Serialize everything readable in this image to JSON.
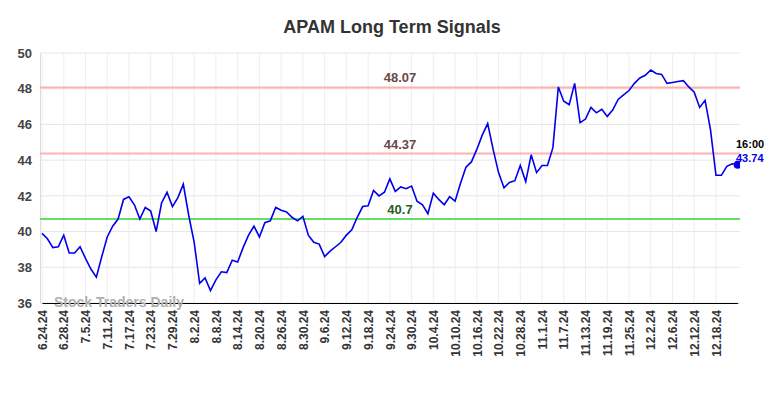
{
  "chart_data": {
    "type": "line",
    "title": "APAM Long Term Signals",
    "categories": [
      "6.24.24",
      null,
      null,
      null,
      "6.28.24",
      null,
      null,
      null,
      "7.5.24",
      null,
      null,
      null,
      "7.11.24",
      null,
      null,
      null,
      "7.17.24",
      null,
      null,
      null,
      "7.23.24",
      null,
      null,
      null,
      "7.29.24",
      null,
      null,
      null,
      "8.2.24",
      null,
      null,
      null,
      "8.8.24",
      null,
      null,
      null,
      "8.14.24",
      null,
      null,
      null,
      "8.20.24",
      null,
      null,
      null,
      "8.26.24",
      null,
      null,
      null,
      "8.30.24",
      null,
      null,
      null,
      "9.6.24",
      null,
      null,
      null,
      "9.12.24",
      null,
      null,
      null,
      "9.18.24",
      null,
      null,
      null,
      "9.24.24",
      null,
      null,
      null,
      "9.30.24",
      null,
      null,
      null,
      "10.4.24",
      null,
      null,
      null,
      "10.10.24",
      null,
      null,
      null,
      "10.16.24",
      null,
      null,
      null,
      "10.22.24",
      null,
      null,
      null,
      "10.28.24",
      null,
      null,
      null,
      "11.1.24",
      null,
      null,
      null,
      "11.7.24",
      null,
      null,
      null,
      "11.13.24",
      null,
      null,
      null,
      "11.19.24",
      null,
      null,
      null,
      "11.25.24",
      null,
      null,
      null,
      "12.2.24",
      null,
      null,
      null,
      "12.6.24",
      null,
      null,
      null,
      "12.12.24",
      null,
      null,
      null,
      "12.18.24",
      null,
      null,
      null,
      null
    ],
    "values": [
      39.9,
      39.6,
      39.1,
      39.15,
      39.8,
      38.8,
      38.8,
      39.15,
      38.5,
      37.9,
      37.45,
      38.6,
      39.7,
      40.3,
      40.7,
      41.8,
      41.95,
      41.5,
      40.7,
      41.35,
      41.15,
      40.0,
      41.6,
      42.2,
      41.4,
      41.9,
      42.65,
      40.9,
      39.4,
      37.1,
      37.4,
      36.7,
      37.3,
      37.75,
      37.7,
      38.4,
      38.3,
      39.1,
      39.8,
      40.3,
      39.7,
      40.5,
      40.6,
      41.35,
      41.2,
      41.1,
      40.8,
      40.6,
      40.85,
      39.8,
      39.4,
      39.3,
      38.6,
      38.9,
      39.15,
      39.4,
      39.8,
      40.1,
      40.8,
      41.4,
      41.45,
      42.3,
      42.0,
      42.2,
      42.95,
      42.25,
      42.5,
      42.4,
      42.55,
      41.7,
      41.5,
      41.0,
      42.15,
      41.8,
      41.5,
      41.95,
      41.7,
      42.7,
      43.6,
      43.9,
      44.6,
      45.4,
      46.05,
      44.6,
      43.3,
      42.45,
      42.75,
      42.85,
      43.7,
      42.8,
      44.3,
      43.3,
      43.7,
      43.7,
      44.7,
      48.1,
      47.3,
      47.1,
      48.3,
      46.1,
      46.3,
      46.95,
      46.65,
      46.85,
      46.45,
      46.8,
      47.4,
      47.65,
      47.9,
      48.3,
      48.6,
      48.75,
      49.05,
      48.85,
      48.8,
      48.3,
      48.35,
      48.4,
      48.45,
      48.1,
      47.8,
      46.95,
      47.35,
      45.7,
      43.15,
      43.15,
      43.65,
      43.8,
      43.74
    ],
    "color": "#0000ee",
    "ylim": [
      36,
      50
    ],
    "yticks": [
      36,
      38,
      40,
      42,
      44,
      46,
      48,
      50
    ],
    "grid": true,
    "levels": [
      {
        "value": 48.07,
        "color": "#ffb0b0"
      },
      {
        "value": 44.37,
        "color": "#ffb0b0"
      },
      {
        "value": 40.7,
        "color": "#66dd66"
      }
    ],
    "last_time": "16:00",
    "watermark": "Stock Traders Daily"
  }
}
